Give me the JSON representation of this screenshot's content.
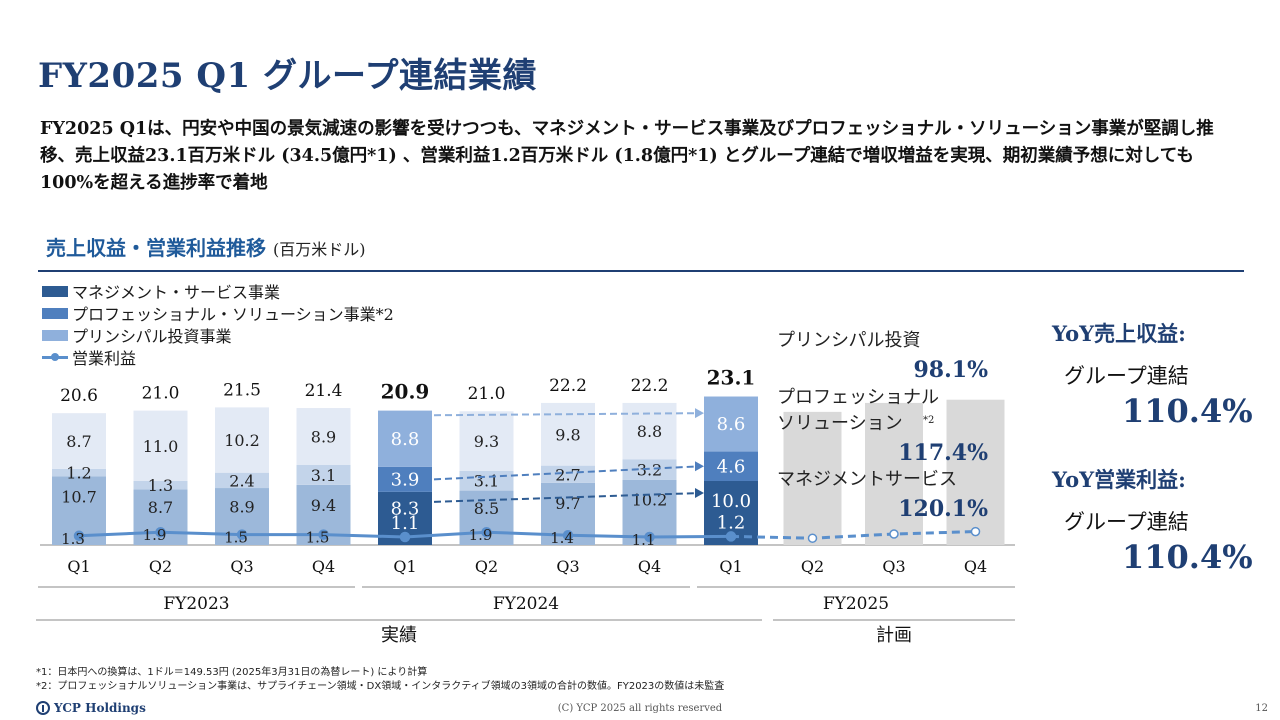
{
  "title": "FY2025 Q1 グループ連結業績",
  "summary": "FY2025 Q1は、円安や中国の景気減速の影響を受けつつも、マネジメント・サービス事業及びプロフェッショナル・ソリューション事業が堅調し推移、売上収益23.1百万米ドル (34.5億円*1) 、営業利益1.2百万米ドル (1.8億円*1) とグループ連結で増収増益を実現、期初業績予想に対しても100%を超える進捗率で着地",
  "section": {
    "title": "売上収益・営業利益推移",
    "unit": "(百万米ドル)"
  },
  "legend": {
    "management": "マネジメント・サービス事業",
    "professional": "プロフェッショナル・ソリューション事業*2",
    "principal": "プリンシパル投資事業",
    "op_profit": "営業利益"
  },
  "colors": {
    "title": "#1f3f73",
    "mgmt": "#9cb8da",
    "prof": "#c3d4ea",
    "prin": "#e3eaf5",
    "mgmt_hl": "#2d5b92",
    "prof_hl": "#4f7fbe",
    "prin_hl": "#8fb0dc",
    "plan": "#d9d9d9",
    "line": "#5a8fcc"
  },
  "chart_data": {
    "type": "bar",
    "stacked": true,
    "periods": [
      {
        "label": "Q1",
        "year": "FY2023",
        "mgmt": 10.7,
        "prof": 1.2,
        "prin": 8.7,
        "total": 20.6,
        "op": 1.3,
        "status": "actual"
      },
      {
        "label": "Q2",
        "year": "FY2023",
        "mgmt": 8.7,
        "prof": 1.3,
        "prin": 11.0,
        "total": 21.0,
        "op": 1.9,
        "status": "actual"
      },
      {
        "label": "Q3",
        "year": "FY2023",
        "mgmt": 8.9,
        "prof": 2.4,
        "prin": 10.2,
        "total": 21.5,
        "op": 1.5,
        "status": "actual"
      },
      {
        "label": "Q4",
        "year": "FY2023",
        "mgmt": 9.4,
        "prof": 3.1,
        "prin": 8.9,
        "total": 21.4,
        "op": 1.5,
        "status": "actual"
      },
      {
        "label": "Q1",
        "year": "FY2024",
        "mgmt": 8.3,
        "prof": 3.9,
        "prin": 8.8,
        "total": 20.9,
        "op": 1.1,
        "status": "highlight"
      },
      {
        "label": "Q2",
        "year": "FY2024",
        "mgmt": 8.5,
        "prof": 3.1,
        "prin": 9.3,
        "total": 21.0,
        "op": 1.9,
        "status": "actual"
      },
      {
        "label": "Q3",
        "year": "FY2024",
        "mgmt": 9.7,
        "prof": 2.7,
        "prin": 9.8,
        "total": 22.2,
        "op": 1.4,
        "status": "actual"
      },
      {
        "label": "Q4",
        "year": "FY2024",
        "mgmt": 10.2,
        "prof": 3.2,
        "prin": 8.8,
        "total": 22.2,
        "op": 1.1,
        "status": "actual"
      },
      {
        "label": "Q1",
        "year": "FY2025",
        "mgmt": 10.0,
        "prof": 4.6,
        "prin": 8.6,
        "total": 23.1,
        "op": 1.2,
        "status": "highlight"
      },
      {
        "label": "Q2",
        "year": "FY2025",
        "plan_total": 20.8,
        "op": 0.9,
        "status": "plan"
      },
      {
        "label": "Q3",
        "year": "FY2025",
        "plan_total": 22.2,
        "op": 1.6,
        "status": "plan"
      },
      {
        "label": "Q4",
        "year": "FY2025",
        "plan_total": 22.7,
        "op": 2.0,
        "status": "plan"
      }
    ],
    "years": [
      "FY2023",
      "FY2024",
      "FY2025"
    ],
    "groups": {
      "actual": "実績",
      "plan": "計画"
    },
    "yoy_segments": [
      {
        "name": "プリンシパル投資",
        "value": "98.1%"
      },
      {
        "name_line1": "プロフェッショナル",
        "name_line2": "ソリューション",
        "name_sup": "*2",
        "value": "117.4%"
      },
      {
        "name": "マネジメントサービス",
        "value": "120.1%"
      }
    ],
    "ylim": [
      0,
      24
    ]
  },
  "yoy": {
    "sales_label": "YoY売上収益:",
    "sales_sub": "グループ連結",
    "sales_value": "110.4%",
    "op_label": "YoY営業利益:",
    "op_sub": "グループ連結",
    "op_value": "110.4%"
  },
  "footnotes": {
    "note1": "*1：日本円への換算は、1ドル＝149.53円 (2025年3月31日の為替レート) により計算",
    "note2": "*2：プロフェッショナルソリューション事業は、サプライチェーン領域・DX領域・インタラクティブ領域の3領域の合計の数値。FY2023の数値は未監査"
  },
  "footer": {
    "logo": "YCP Holdings",
    "copyright": "(C) YCP 2025 all rights reserved",
    "page": "12"
  }
}
